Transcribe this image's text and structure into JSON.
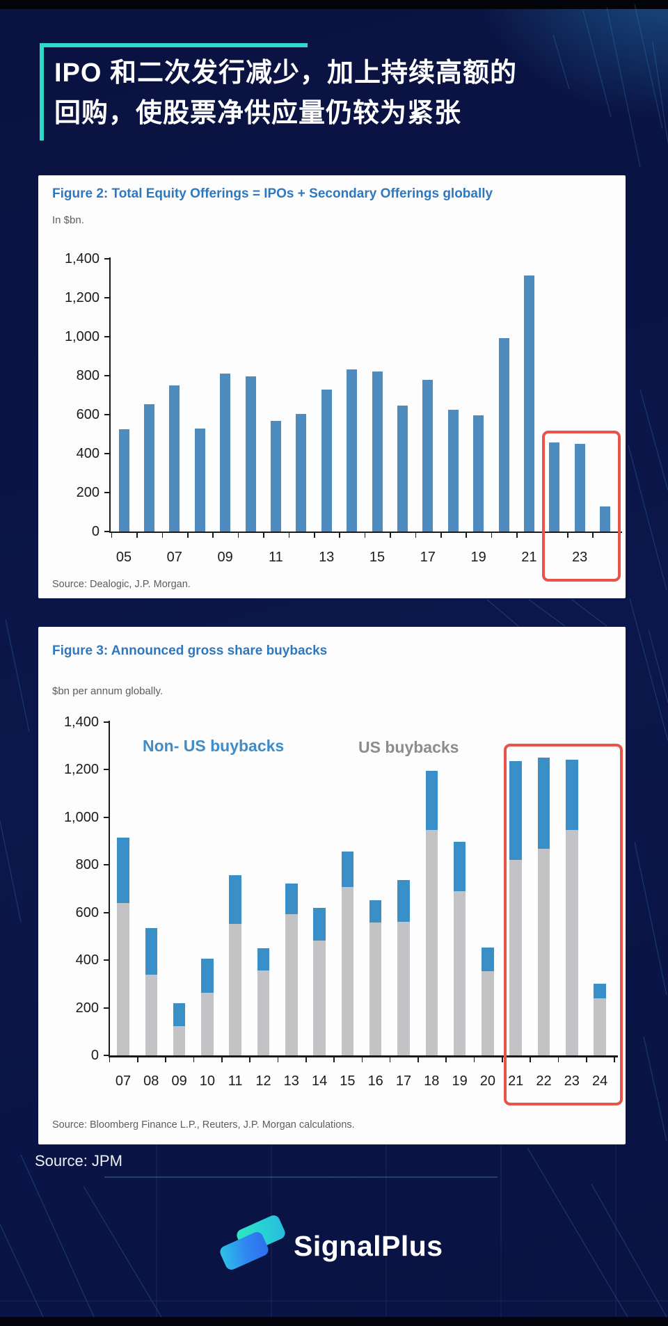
{
  "page": {
    "background": "#0b164a",
    "accent_teal": "#2fd9c9",
    "panel_bg": "#fdfdfd"
  },
  "header": {
    "title_line1": "IPO 和二次发行减少，加上持续高额的",
    "title_line2": "回购，使股票净供应量仍较为紧张"
  },
  "figure2": {
    "title": "Figure 2: Total Equity Offerings = IPOs + Secondary Offerings globally",
    "subtitle": "In $bn.",
    "source": "Source: Dealogic, J.P. Morgan."
  },
  "figure3": {
    "title": "Figure 3: Announced gross share buybacks",
    "subtitle": "$bn per annum globally.",
    "source": "Source: Bloomberg Finance L.P., Reuters, J.P. Morgan calculations.",
    "legend": [
      {
        "label": "Non- US buybacks",
        "color": "#3f8cc8"
      },
      {
        "label": "US buybacks",
        "color": "#8c8c8c"
      }
    ]
  },
  "footer": {
    "source_label": "Source: JPM",
    "brand": "SignalPlus",
    "brand_logo_icon": "signalplus-wave-icon"
  },
  "chart_data": [
    {
      "type": "bar",
      "title": "Figure 2: Total Equity Offerings = IPOs + Secondary Offerings globally",
      "ylabel": "$bn",
      "categories": [
        "05",
        "06",
        "07",
        "08",
        "09",
        "10",
        "11",
        "12",
        "13",
        "14",
        "15",
        "16",
        "17",
        "18",
        "19",
        "20",
        "21",
        "22",
        "23",
        "24"
      ],
      "values": [
        525,
        652,
        750,
        530,
        812,
        798,
        568,
        602,
        728,
        833,
        823,
        648,
        777,
        624,
        597,
        992,
        1315,
        456,
        450,
        128
      ],
      "ylim": [
        0,
        1400
      ],
      "ytick_step": 200,
      "xtick_labels_shown": [
        "05",
        "07",
        "09",
        "11",
        "13",
        "15",
        "17",
        "19",
        "21",
        "23"
      ],
      "bar_color": "#4e8cbf",
      "grid": false,
      "highlight_box": {
        "categories": [
          "22",
          "23",
          "24"
        ],
        "color": "#e8544a"
      }
    },
    {
      "type": "stacked-bar",
      "title": "Figure 3: Announced gross share buybacks",
      "ylabel": "$bn per annum",
      "categories": [
        "07",
        "08",
        "09",
        "10",
        "11",
        "12",
        "13",
        "14",
        "15",
        "16",
        "17",
        "18",
        "19",
        "20",
        "21",
        "22",
        "23",
        "24"
      ],
      "series": [
        {
          "name": "US buybacks",
          "color": "#c3c3c5",
          "values": [
            640,
            340,
            122,
            262,
            552,
            356,
            592,
            482,
            708,
            558,
            562,
            945,
            690,
            352,
            820,
            868,
            945,
            238
          ]
        },
        {
          "name": "Non- US buybacks",
          "color": "#3a8fc9",
          "values": [
            275,
            195,
            98,
            143,
            203,
            94,
            128,
            138,
            147,
            94,
            173,
            250,
            205,
            100,
            415,
            382,
            295,
            62
          ]
        }
      ],
      "totals": [
        915,
        535,
        220,
        405,
        755,
        450,
        720,
        620,
        855,
        652,
        735,
        1195,
        895,
        452,
        1235,
        1250,
        1240,
        300
      ],
      "ylim": [
        0,
        1400
      ],
      "ytick_step": 200,
      "grid": false,
      "legend_position": "top-inside",
      "highlight_box": {
        "categories": [
          "21",
          "22",
          "23",
          "24"
        ],
        "color": "#e8544a"
      }
    }
  ]
}
